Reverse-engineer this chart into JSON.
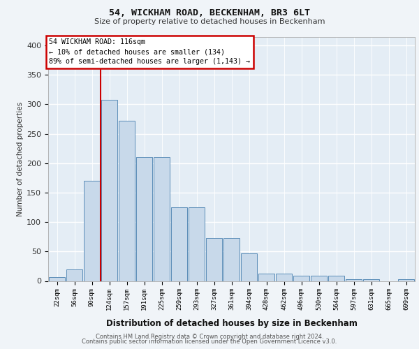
{
  "title1": "54, WICKHAM ROAD, BECKENHAM, BR3 6LT",
  "title2": "Size of property relative to detached houses in Beckenham",
  "xlabel": "Distribution of detached houses by size in Beckenham",
  "ylabel": "Number of detached properties",
  "bar_labels": [
    "22sqm",
    "56sqm",
    "90sqm",
    "124sqm",
    "157sqm",
    "191sqm",
    "225sqm",
    "259sqm",
    "293sqm",
    "327sqm",
    "361sqm",
    "394sqm",
    "428sqm",
    "462sqm",
    "496sqm",
    "530sqm",
    "564sqm",
    "597sqm",
    "631sqm",
    "665sqm",
    "699sqm"
  ],
  "bar_values": [
    7,
    20,
    170,
    308,
    272,
    210,
    210,
    125,
    125,
    73,
    73,
    47,
    13,
    13,
    9,
    9,
    9,
    3,
    3,
    0,
    3
  ],
  "bar_color": "#c8d9ea",
  "bar_edge_color": "#5b8db8",
  "vline_color": "#cc0000",
  "vline_pos": 2.5,
  "annotation_line1": "54 WICKHAM ROAD: 116sqm",
  "annotation_line2": "← 10% of detached houses are smaller (134)",
  "annotation_line3": "89% of semi-detached houses are larger (1,143) →",
  "ylim": [
    0,
    415
  ],
  "yticks": [
    0,
    50,
    100,
    150,
    200,
    250,
    300,
    350,
    400
  ],
  "fig_bg_color": "#f0f4f8",
  "plot_bg_color": "#e4edf5",
  "footer1": "Contains HM Land Registry data © Crown copyright and database right 2024.",
  "footer2": "Contains public sector information licensed under the Open Government Licence v3.0."
}
